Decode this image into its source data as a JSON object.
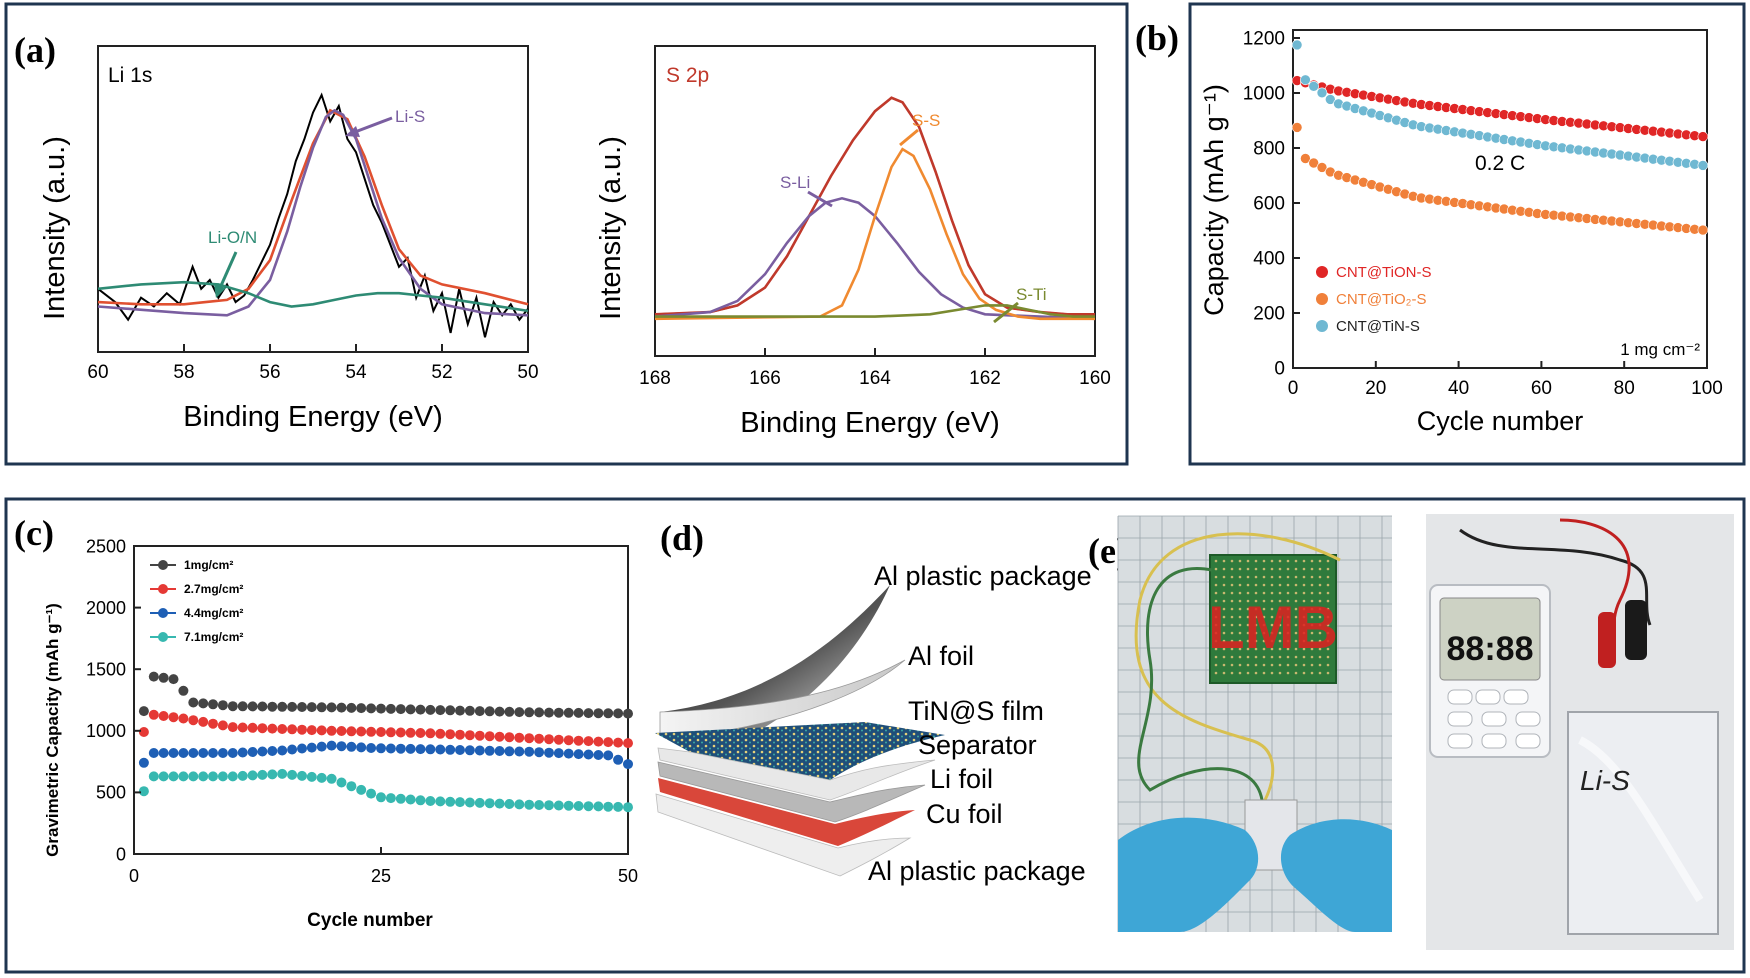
{
  "panel_labels": {
    "a": "(a)",
    "b": "(b)",
    "c": "(c)",
    "d": "(d)",
    "e": "(e)"
  },
  "chart_data": [
    {
      "id": "a1",
      "type": "line",
      "title": "Li 1s",
      "xlabel": "Binding Energy (eV)",
      "ylabel": "Intensity (a.u.)",
      "xlim": [
        60,
        50
      ],
      "ylim": [
        0,
        1
      ],
      "x_ticks": [
        "60",
        "58",
        "56",
        "54",
        "52",
        "50"
      ],
      "annotations": [
        "Li-S",
        "Li-O/N"
      ],
      "series": [
        {
          "color": "#000000",
          "x": [
            60,
            59.6,
            59.3,
            59.0,
            58.7,
            58.4,
            58.1,
            57.8,
            57.6,
            57.4,
            57.2,
            57.0,
            56.8,
            56.6,
            56.4,
            56.2,
            56.0,
            55.8,
            55.6,
            55.4,
            55.2,
            55.0,
            54.8,
            54.6,
            54.4,
            54.2,
            54.0,
            53.8,
            53.6,
            53.4,
            53.2,
            53.0,
            52.8,
            52.6,
            52.4,
            52.2,
            52.0,
            51.8,
            51.6,
            51.4,
            51.2,
            51.0,
            50.8,
            50.6,
            50.4,
            50.2,
            50.0
          ],
          "y": [
            0.12,
            0.06,
            -0.02,
            0.08,
            0.04,
            0.1,
            0.05,
            0.22,
            0.12,
            0.16,
            0.08,
            0.14,
            0.06,
            0.09,
            0.16,
            0.24,
            0.32,
            0.44,
            0.55,
            0.7,
            0.8,
            0.92,
            1.0,
            0.88,
            0.95,
            0.8,
            0.74,
            0.62,
            0.5,
            0.42,
            0.32,
            0.22,
            0.26,
            0.08,
            0.18,
            0.02,
            0.1,
            -0.08,
            0.12,
            -0.04,
            0.08,
            -0.1,
            0.06,
            0.0,
            0.05,
            -0.02,
            0.03
          ]
        },
        {
          "color": "#e05030",
          "x": [
            60,
            59,
            58,
            57.5,
            57,
            56.5,
            56,
            55.5,
            55,
            54.6,
            54.2,
            53.8,
            53.4,
            53,
            52.5,
            52,
            51,
            50
          ],
          "y": [
            0.06,
            0.05,
            0.05,
            0.06,
            0.07,
            0.12,
            0.25,
            0.52,
            0.78,
            0.93,
            0.89,
            0.72,
            0.5,
            0.3,
            0.18,
            0.14,
            0.1,
            0.05
          ]
        },
        {
          "color": "#7a5ea0",
          "x": [
            60,
            58,
            57,
            56.5,
            56,
            55.6,
            55.3,
            55.0,
            54.7,
            54.5,
            54.3,
            54.0,
            53.7,
            53.4,
            53,
            52.5,
            52,
            51,
            50
          ],
          "y": [
            0.04,
            0.01,
            0.0,
            0.04,
            0.16,
            0.38,
            0.58,
            0.76,
            0.9,
            0.93,
            0.91,
            0.8,
            0.62,
            0.44,
            0.26,
            0.12,
            0.05,
            0.01,
            0.0
          ]
        },
        {
          "color": "#2e8b74",
          "x": [
            60,
            59,
            58,
            57.2,
            56.5,
            56,
            55.5,
            55,
            54.5,
            54,
            53.5,
            53,
            52.5,
            52,
            51,
            50
          ],
          "y": [
            0.12,
            0.14,
            0.15,
            0.14,
            0.1,
            0.06,
            0.04,
            0.05,
            0.07,
            0.09,
            0.1,
            0.1,
            0.09,
            0.08,
            0.05,
            0.02
          ]
        }
      ]
    },
    {
      "id": "a2",
      "type": "line",
      "title": "S 2p",
      "xlabel": "Binding Energy (eV)",
      "ylabel": "Intensity (a.u.)",
      "xlim": [
        168,
        160
      ],
      "ylim": [
        0,
        1
      ],
      "x_ticks": [
        "168",
        "166",
        "164",
        "162",
        "160"
      ],
      "annotations": [
        "S-S",
        "S-Li",
        "S-Ti"
      ],
      "series": [
        {
          "color": "#000000",
          "x": [
            168,
            167,
            166.5,
            166,
            165.6,
            165.2,
            164.8,
            164.4,
            164.0,
            163.7,
            163.5,
            163.2,
            162.9,
            162.6,
            162.3,
            162.0,
            161.6,
            161.0,
            160.5,
            160
          ],
          "y": [
            0.02,
            0.03,
            0.06,
            0.14,
            0.28,
            0.46,
            0.64,
            0.8,
            0.93,
            0.99,
            0.97,
            0.86,
            0.66,
            0.44,
            0.24,
            0.11,
            0.05,
            0.03,
            0.02,
            0.02
          ]
        },
        {
          "color": "#c0392b",
          "x": [
            168,
            167,
            166.5,
            166,
            165.6,
            165.2,
            164.8,
            164.4,
            164.0,
            163.7,
            163.5,
            163.2,
            162.9,
            162.6,
            162.3,
            162.0,
            161.6,
            161.0,
            160.5,
            160
          ],
          "y": [
            0.02,
            0.03,
            0.06,
            0.14,
            0.28,
            0.46,
            0.64,
            0.8,
            0.93,
            0.99,
            0.97,
            0.86,
            0.66,
            0.44,
            0.24,
            0.11,
            0.05,
            0.03,
            0.02,
            0.02
          ]
        },
        {
          "color": "#7a5ea0",
          "x": [
            168,
            167,
            166.5,
            166,
            165.6,
            165.2,
            164.9,
            164.6,
            164.3,
            164.0,
            163.6,
            163.2,
            162.8,
            162.4,
            162,
            161,
            160
          ],
          "y": [
            0.01,
            0.03,
            0.08,
            0.2,
            0.34,
            0.46,
            0.52,
            0.54,
            0.52,
            0.46,
            0.34,
            0.21,
            0.11,
            0.05,
            0.02,
            0.01,
            0.0
          ]
        },
        {
          "color": "#f08a30",
          "x": [
            168,
            165,
            164.6,
            164.3,
            164.0,
            163.7,
            163.5,
            163.3,
            163.0,
            162.7,
            162.4,
            162.1,
            161.8,
            161.4,
            161,
            160
          ],
          "y": [
            0.0,
            0.01,
            0.06,
            0.22,
            0.46,
            0.68,
            0.76,
            0.73,
            0.58,
            0.38,
            0.2,
            0.09,
            0.04,
            0.01,
            0.0,
            0.0
          ]
        },
        {
          "color": "#7a8a30",
          "x": [
            168,
            166,
            164,
            163,
            162.5,
            162.0,
            161.6,
            161.2,
            160.8,
            160.4,
            160
          ],
          "y": [
            0.01,
            0.01,
            0.01,
            0.02,
            0.04,
            0.06,
            0.06,
            0.04,
            0.02,
            0.01,
            0.01
          ]
        }
      ]
    },
    {
      "id": "b",
      "type": "scatter",
      "xlabel": "Cycle number",
      "ylabel": "Capacity (mAh g⁻¹)",
      "xlim": [
        0,
        100
      ],
      "ylim": [
        0,
        1200
      ],
      "x_ticks": [
        "0",
        "20",
        "40",
        "60",
        "80",
        "100"
      ],
      "y_ticks": [
        "0",
        "200",
        "400",
        "600",
        "800",
        "1000",
        "1200"
      ],
      "annotations": [
        "0.2 C",
        "1 mg cm⁻²"
      ],
      "series": [
        {
          "name": "CNT@TiON-S",
          "color": "#e02626",
          "anchors_x": [
            1,
            10,
            30,
            60,
            100
          ],
          "anchors_y": [
            1045,
            1010,
            960,
            905,
            840
          ]
        },
        {
          "name": "CNT@TiO₂-S",
          "color": "#f0803a",
          "anchors_x": [
            1,
            2,
            10,
            30,
            60,
            100
          ],
          "anchors_y": [
            875,
            770,
            705,
            620,
            560,
            500
          ]
        },
        {
          "name": "CNT@TiN-S",
          "color": "#6fb8d2",
          "anchors_x": [
            1,
            2,
            10,
            30,
            60,
            100
          ],
          "anchors_y": [
            1175,
            1060,
            965,
            880,
            810,
            735
          ]
        }
      ]
    },
    {
      "id": "c",
      "type": "scatter",
      "xlabel": "Cycle number",
      "ylabel": "Gravimetric Capacity (mAh g⁻¹)",
      "xlim": [
        0,
        50
      ],
      "ylim": [
        0,
        2500
      ],
      "x_ticks": [
        "0",
        "25",
        "50"
      ],
      "y_ticks": [
        "0",
        "500",
        "1000",
        "1500",
        "2000",
        "2500"
      ],
      "series": [
        {
          "name": "1mg/cm²",
          "color": "#444444",
          "anchors_x": [
            1,
            2,
            4,
            6,
            10,
            20,
            30,
            40,
            50
          ],
          "anchors_y": [
            1160,
            1440,
            1420,
            1230,
            1200,
            1190,
            1170,
            1150,
            1140
          ]
        },
        {
          "name": "2.7mg/cm²",
          "color": "#e53935",
          "anchors_x": [
            1,
            2,
            5,
            10,
            20,
            30,
            40,
            50
          ],
          "anchors_y": [
            990,
            1130,
            1100,
            1030,
            1000,
            980,
            940,
            900
          ]
        },
        {
          "name": "4.4mg/cm²",
          "color": "#1e5fb5",
          "anchors_x": [
            1,
            2,
            10,
            15,
            20,
            24,
            30,
            40,
            48,
            50
          ],
          "anchors_y": [
            740,
            820,
            820,
            840,
            880,
            860,
            850,
            830,
            800,
            730
          ]
        },
        {
          "name": "7.1mg/cm²",
          "color": "#37b8b0",
          "anchors_x": [
            1,
            2,
            10,
            15,
            20,
            25,
            30,
            40,
            50
          ],
          "anchors_y": [
            510,
            630,
            630,
            650,
            610,
            460,
            430,
            400,
            380
          ]
        }
      ]
    }
  ],
  "diagram_d": {
    "layers": [
      "Al plastic package",
      "Al foil",
      "TiN@S film",
      "Separator",
      "Li foil",
      "Cu foil",
      "Al plastic package"
    ]
  },
  "photo_e": {
    "led_text": "LMB",
    "timer_text": "88:88",
    "pouch_text": "Li-S"
  }
}
